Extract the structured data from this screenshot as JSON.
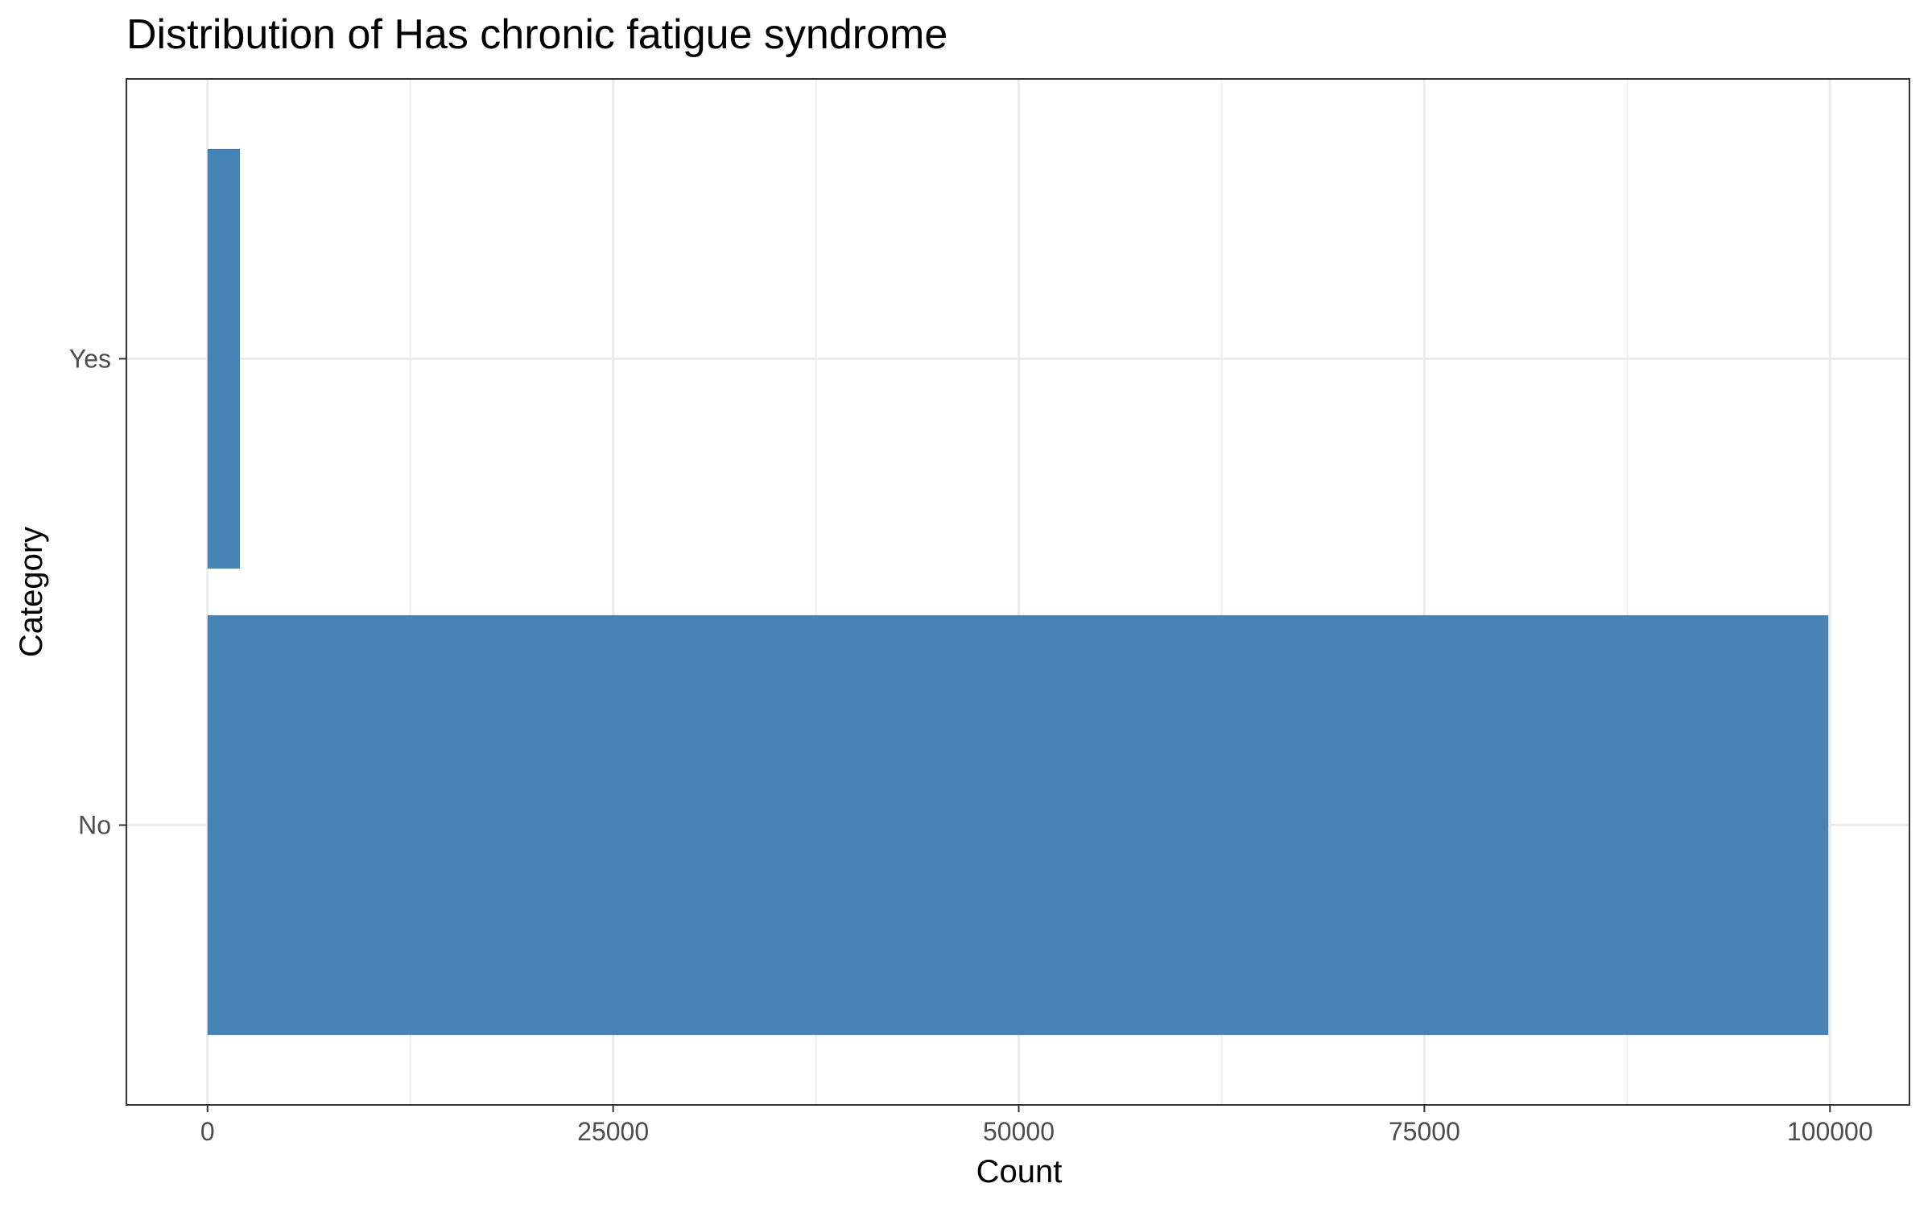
{
  "chart_data": {
    "type": "bar",
    "orientation": "horizontal",
    "title": "Distribution of Has chronic fatigue syndrome",
    "xlabel": "Count",
    "ylabel": "Category",
    "categories": [
      "No",
      "Yes"
    ],
    "values": [
      99900,
      2000
    ],
    "xlim": [
      -5000,
      104900
    ],
    "xticks": [
      0,
      25000,
      50000,
      75000,
      100000
    ],
    "x_tick_labels": [
      "0",
      "25000",
      "50000",
      "75000",
      "100000"
    ],
    "grid": true,
    "bar_color": "#4682B4",
    "legend": "none"
  }
}
